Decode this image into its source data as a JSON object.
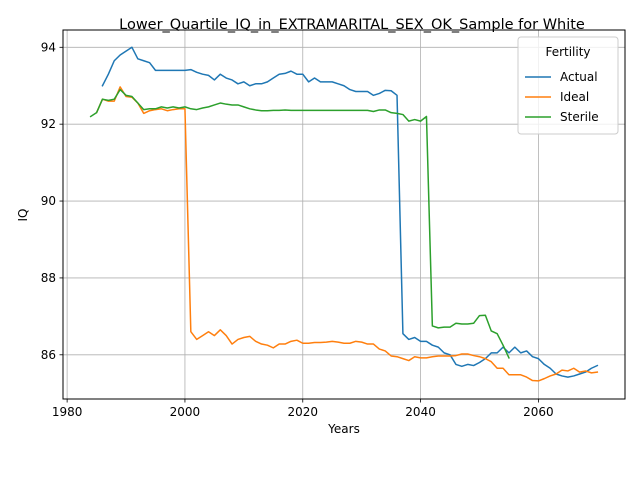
{
  "chart_data": {
    "type": "line",
    "title": "Lower_Quartile_IQ_in_EXTRAMARITAL_SEX_OK_Sample for White",
    "xlabel": "Years",
    "ylabel": "IQ",
    "xlim": [
      1979.3,
      2074.7
    ],
    "ylim": [
      84.85,
      94.45
    ],
    "xticks": [
      1980,
      2000,
      2020,
      2040,
      2060
    ],
    "yticks": [
      86,
      88,
      90,
      92,
      94
    ],
    "grid": true,
    "legend": {
      "title": "Fertility",
      "placement": "top-right"
    },
    "series": [
      {
        "name": "Actual",
        "color": "#1f77b4",
        "x": [
          1986,
          1987,
          1988,
          1989,
          1990,
          1991,
          1992,
          1993,
          1994,
          1995,
          1996,
          1997,
          1998,
          1999,
          2000,
          2001,
          2002,
          2003,
          2004,
          2005,
          2006,
          2007,
          2008,
          2009,
          2010,
          2011,
          2012,
          2013,
          2014,
          2015,
          2016,
          2017,
          2018,
          2019,
          2020,
          2021,
          2022,
          2023,
          2024,
          2025,
          2026,
          2027,
          2028,
          2029,
          2030,
          2031,
          2032,
          2033,
          2034,
          2035,
          2036,
          2037,
          2038,
          2039,
          2040,
          2041,
          2042,
          2043,
          2044,
          2045,
          2046,
          2047,
          2048,
          2049,
          2050,
          2051,
          2052,
          2053,
          2054,
          2055,
          2056,
          2057,
          2058,
          2059,
          2060,
          2061,
          2062,
          2063,
          2064,
          2065,
          2066,
          2067,
          2068,
          2069,
          2070
        ],
        "y": [
          93.0,
          93.3,
          93.65,
          93.8,
          93.9,
          94.0,
          93.7,
          93.65,
          93.6,
          93.4,
          93.4,
          93.4,
          93.4,
          93.4,
          93.4,
          93.42,
          93.35,
          93.3,
          93.27,
          93.15,
          93.3,
          93.2,
          93.15,
          93.05,
          93.1,
          93.0,
          93.05,
          93.05,
          93.1,
          93.2,
          93.3,
          93.32,
          93.38,
          93.3,
          93.3,
          93.1,
          93.2,
          93.1,
          93.1,
          93.1,
          93.05,
          93.0,
          92.9,
          92.85,
          92.85,
          92.85,
          92.75,
          92.8,
          92.88,
          92.87,
          92.75,
          86.55,
          86.4,
          86.45,
          86.35,
          86.35,
          86.25,
          86.2,
          86.05,
          86.0,
          85.75,
          85.7,
          85.75,
          85.72,
          85.8,
          85.9,
          86.05,
          86.05,
          86.2,
          86.05,
          86.2,
          86.05,
          86.1,
          85.95,
          85.9,
          85.75,
          85.65,
          85.5,
          85.45,
          85.42,
          85.45,
          85.5,
          85.55,
          85.65,
          85.72
        ]
      },
      {
        "name": "Ideal",
        "color": "#ff7f0e",
        "x": [
          1985,
          1986,
          1987,
          1988,
          1989,
          1990,
          1991,
          1992,
          1993,
          1994,
          1995,
          1996,
          1997,
          1998,
          1999,
          2000,
          2001,
          2002,
          2003,
          2004,
          2005,
          2006,
          2007,
          2008,
          2009,
          2010,
          2011,
          2012,
          2013,
          2014,
          2015,
          2016,
          2017,
          2018,
          2019,
          2020,
          2021,
          2022,
          2023,
          2024,
          2025,
          2026,
          2027,
          2028,
          2029,
          2030,
          2031,
          2032,
          2033,
          2034,
          2035,
          2036,
          2037,
          2038,
          2039,
          2040,
          2041,
          2042,
          2043,
          2044,
          2045,
          2046,
          2047,
          2048,
          2049,
          2050,
          2051,
          2052,
          2053,
          2054,
          2055,
          2056,
          2057,
          2058,
          2059,
          2060,
          2061,
          2062,
          2063,
          2064,
          2065,
          2066,
          2067,
          2068,
          2069,
          2070
        ],
        "y": [
          92.3,
          92.65,
          92.6,
          92.6,
          92.97,
          92.72,
          92.7,
          92.55,
          92.28,
          92.35,
          92.38,
          92.4,
          92.35,
          92.38,
          92.4,
          92.4,
          86.6,
          86.4,
          86.5,
          86.6,
          86.5,
          86.65,
          86.5,
          86.28,
          86.4,
          86.45,
          86.48,
          86.35,
          86.28,
          86.25,
          86.18,
          86.28,
          86.28,
          86.35,
          86.38,
          86.3,
          86.3,
          86.32,
          86.32,
          86.33,
          86.35,
          86.33,
          86.3,
          86.3,
          86.35,
          86.33,
          86.28,
          86.28,
          86.15,
          86.1,
          85.97,
          85.95,
          85.9,
          85.85,
          85.95,
          85.92,
          85.92,
          85.95,
          85.97,
          85.97,
          85.97,
          85.98,
          86.02,
          86.02,
          85.98,
          85.95,
          85.9,
          85.82,
          85.65,
          85.65,
          85.48,
          85.48,
          85.48,
          85.42,
          85.33,
          85.32,
          85.38,
          85.45,
          85.5,
          85.6,
          85.58,
          85.65,
          85.55,
          85.58,
          85.53,
          85.55
        ]
      },
      {
        "name": "Sterile",
        "color": "#2ca02c",
        "x": [
          1984,
          1985,
          1986,
          1987,
          1988,
          1989,
          1990,
          1991,
          1992,
          1993,
          1994,
          1995,
          1996,
          1997,
          1998,
          1999,
          2000,
          2001,
          2002,
          2003,
          2004,
          2005,
          2006,
          2007,
          2008,
          2009,
          2010,
          2011,
          2012,
          2013,
          2014,
          2015,
          2016,
          2017,
          2018,
          2019,
          2020,
          2021,
          2022,
          2023,
          2024,
          2025,
          2026,
          2027,
          2028,
          2029,
          2030,
          2031,
          2032,
          2033,
          2034,
          2035,
          2036,
          2037,
          2038,
          2039,
          2040,
          2041,
          2042,
          2043,
          2044,
          2045,
          2046,
          2047,
          2048,
          2049,
          2050,
          2051,
          2052,
          2053,
          2054,
          2055
        ],
        "y": [
          92.2,
          92.3,
          92.65,
          92.62,
          92.65,
          92.9,
          92.75,
          92.72,
          92.55,
          92.38,
          92.4,
          92.4,
          92.45,
          92.42,
          92.45,
          92.42,
          92.45,
          92.4,
          92.38,
          92.42,
          92.45,
          92.5,
          92.55,
          92.52,
          92.5,
          92.5,
          92.45,
          92.4,
          92.37,
          92.35,
          92.35,
          92.36,
          92.36,
          92.37,
          92.36,
          92.36,
          92.36,
          92.36,
          92.36,
          92.36,
          92.36,
          92.36,
          92.36,
          92.36,
          92.36,
          92.36,
          92.36,
          92.36,
          92.33,
          92.37,
          92.37,
          92.3,
          92.28,
          92.25,
          92.08,
          92.12,
          92.08,
          92.2,
          86.75,
          86.7,
          86.72,
          86.72,
          86.82,
          86.8,
          86.8,
          86.82,
          87.02,
          87.03,
          86.62,
          86.55,
          86.25,
          85.92
        ]
      }
    ]
  }
}
